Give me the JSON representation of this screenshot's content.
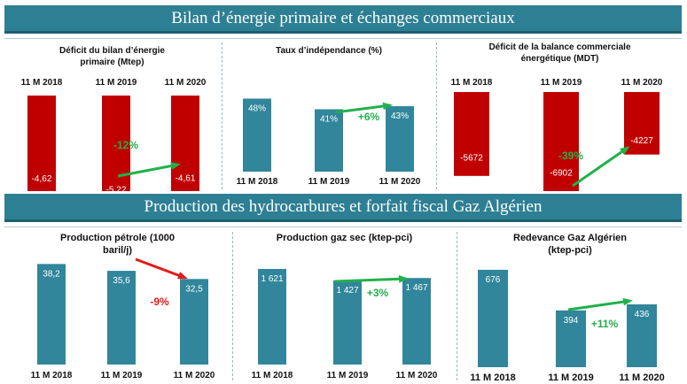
{
  "banners": {
    "top": "Bilan d’énergie primaire et échanges commerciaux",
    "bottom": "Production des hydrocarbures et forfait fiscal Gaz Algérien"
  },
  "colors": {
    "red_bar": "#c00000",
    "teal_bar": "#31869b",
    "up_arrow": "#22b04b",
    "down_arrow": "#e21b1b"
  },
  "chart_data": [
    {
      "type": "bar",
      "title": "Déficit du bilan d’énergie primaire (Mtep)",
      "categories": [
        "11 M 2018",
        "11 M 2019",
        "11 M 2020"
      ],
      "values": [
        -4.62,
        -5.22,
        -4.61
      ],
      "value_labels": [
        "-4,62",
        "-5,22",
        "-4,61"
      ],
      "axis_position": "top",
      "color": "#c00000",
      "change": {
        "label": "-12%",
        "color": "#22b04b",
        "direction": "up"
      }
    },
    {
      "type": "bar",
      "title": "Taux d’indépendance (%)",
      "categories": [
        "11 M 2018",
        "11 M 2019",
        "11 M 2020"
      ],
      "values": [
        48,
        41,
        43
      ],
      "value_labels": [
        "48%",
        "41%",
        "43%"
      ],
      "axis_position": "bottom",
      "color": "#31869b",
      "change": {
        "label": "+6%",
        "color": "#22b04b",
        "direction": "up"
      }
    },
    {
      "type": "bar",
      "title": "Déficit de la balance commerciale énergétique (MDT)",
      "categories": [
        "11 M 2018",
        "11 M 2019",
        "11 M 2020"
      ],
      "values": [
        -5672,
        -6902,
        -4227
      ],
      "value_labels": [
        "-5672",
        "-6902",
        "-4227"
      ],
      "axis_position": "top",
      "color": "#c00000",
      "change": {
        "label": "-39%",
        "color": "#22b04b",
        "direction": "up"
      }
    },
    {
      "type": "bar",
      "title": "Production pétrole (1000 baril/j)",
      "categories": [
        "11 M 2018",
        "11 M 2019",
        "11 M 2020"
      ],
      "values": [
        38.2,
        35.6,
        32.5
      ],
      "value_labels": [
        "38,2",
        "35,6",
        "32,5"
      ],
      "axis_position": "bottom",
      "color": "#31869b",
      "change": {
        "label": "-9%",
        "color": "#e21b1b",
        "direction": "down"
      }
    },
    {
      "type": "bar",
      "title": "Production gaz sec (ktep-pci)",
      "categories": [
        "11 M 2018",
        "11 M 2019",
        "11 M 2020"
      ],
      "values": [
        1621,
        1427,
        1467
      ],
      "value_labels": [
        "1 621",
        "1 427",
        "1 467"
      ],
      "axis_position": "bottom",
      "color": "#31869b",
      "change": {
        "label": "+3%",
        "color": "#22b04b",
        "direction": "up"
      }
    },
    {
      "type": "bar",
      "title": "Redevance Gaz Algérien (ktep-pci)",
      "categories": [
        "11 M 2018",
        "11 M 2019",
        "11 M 2020"
      ],
      "values": [
        676,
        394,
        436
      ],
      "value_labels": [
        "676",
        "394",
        "436"
      ],
      "axis_position": "bottom",
      "color": "#31869b",
      "change": {
        "label": "+11%",
        "color": "#22b04b",
        "direction": "up"
      }
    }
  ]
}
